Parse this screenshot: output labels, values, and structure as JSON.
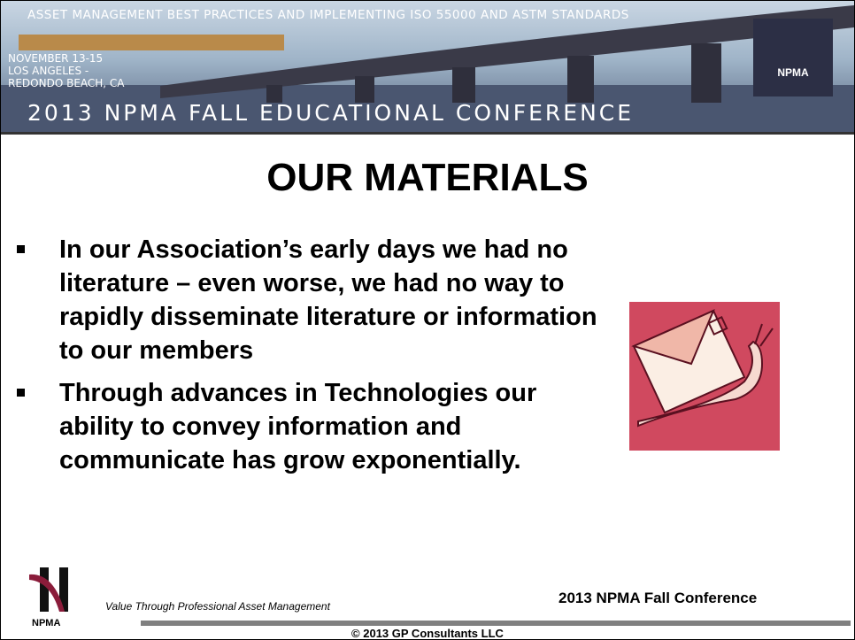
{
  "header": {
    "top_line": "ASSET MANAGEMENT BEST PRACTICES AND IMPLEMENTING ISO 55000 AND ASTM STANDARDS",
    "dates": [
      "NOVEMBER 13-15",
      "LOS ANGELES -",
      "REDONDO BEACH, CA"
    ],
    "conference": "2013 NPMA FALL EDUCATIONAL CONFERENCE",
    "logo": "NPMA"
  },
  "title": "OUR MATERIALS",
  "bullets": [
    "In our Association’s early days we had no literature – even worse, we had no way to rapidly disseminate literature or information to our members",
    "Through advances in Technologies our ability to convey information and communicate has grow exponentially."
  ],
  "footer": {
    "logo": "NPMA",
    "tagline": "Value Through Professional Asset Management",
    "conference": "2013 NPMA Fall Conference",
    "copyright": "© 2013 GP Consultants LLC"
  }
}
